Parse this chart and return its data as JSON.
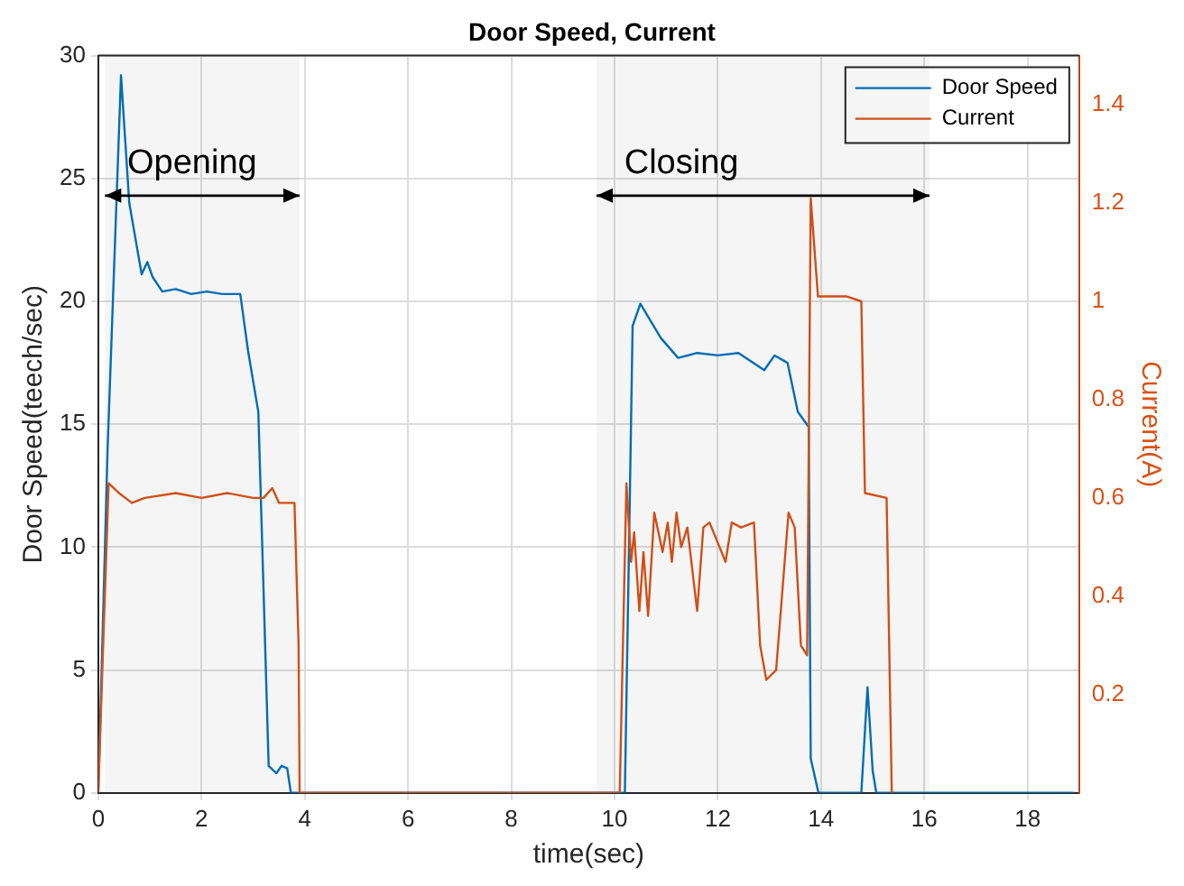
{
  "chart_data": {
    "type": "line",
    "title": "Door Speed, Current",
    "xlabel": "time(sec)",
    "ylabel": "Door Speed(teech/sec)",
    "y2label": "Current(A)",
    "series": [
      {
        "name": "Door Speed",
        "color": "#0072bd",
        "x": [
          0,
          0.18,
          0.44,
          0.6,
          0.84,
          0.95,
          1.05,
          1.24,
          1.5,
          1.8,
          2.1,
          2.4,
          2.75,
          2.9,
          3.1,
          3.3,
          3.45,
          3.55,
          3.66,
          3.73,
          10.2,
          10.28,
          10.35,
          10.5,
          10.7,
          10.9,
          11.23,
          11.6,
          12.0,
          12.4,
          12.9,
          13.1,
          13.35,
          13.55,
          13.76,
          13.8,
          13.95,
          14.78,
          14.9,
          15.0,
          15.07,
          18.9
        ],
        "values": [
          0,
          14,
          29.2,
          24,
          21.1,
          21.6,
          21.0,
          20.4,
          20.5,
          20.3,
          20.4,
          20.3,
          20.3,
          18,
          15.5,
          1.1,
          0.8,
          1.1,
          1.0,
          0,
          0,
          10,
          19,
          19.9,
          19.2,
          18.5,
          17.7,
          17.9,
          17.8,
          17.9,
          17.2,
          17.8,
          17.5,
          15.5,
          14.9,
          1.4,
          0,
          0,
          4.3,
          0.9,
          0,
          0
        ]
      },
      {
        "name": "Current",
        "color": "#d95319",
        "axis": "y2",
        "x": [
          0,
          0.2,
          0.4,
          0.65,
          0.9,
          1.5,
          2.0,
          2.5,
          3.0,
          3.2,
          3.37,
          3.5,
          3.8,
          3.88,
          3.9,
          10.1,
          10.23,
          10.32,
          10.38,
          10.48,
          10.56,
          10.65,
          10.77,
          10.93,
          11.03,
          11.11,
          11.2,
          11.29,
          11.41,
          11.6,
          11.72,
          11.84,
          12.15,
          12.27,
          12.45,
          12.7,
          12.82,
          12.94,
          13.13,
          13.37,
          13.49,
          13.61,
          13.73,
          13.8,
          13.94,
          14.5,
          14.78,
          14.85,
          15.27,
          15.37
        ],
        "values": [
          0,
          0.63,
          0.61,
          0.59,
          0.6,
          0.61,
          0.6,
          0.61,
          0.6,
          0.6,
          0.62,
          0.59,
          0.59,
          0.3,
          0,
          0,
          0.63,
          0.47,
          0.53,
          0.37,
          0.49,
          0.36,
          0.57,
          0.49,
          0.55,
          0.47,
          0.57,
          0.5,
          0.54,
          0.37,
          0.54,
          0.55,
          0.47,
          0.55,
          0.54,
          0.55,
          0.3,
          0.23,
          0.25,
          0.57,
          0.54,
          0.3,
          0.28,
          1.21,
          1.01,
          1.01,
          1.0,
          0.61,
          0.6,
          0
        ]
      }
    ],
    "xlim": [
      0,
      19
    ],
    "xticks": [
      0,
      2,
      4,
      6,
      8,
      10,
      12,
      14,
      16,
      18
    ],
    "ylim": [
      0,
      30
    ],
    "yticks": [
      0,
      5,
      10,
      15,
      20,
      25,
      30
    ],
    "y2lim": [
      0,
      1.5
    ],
    "y2ticks": [
      0.2,
      0.4,
      0.6,
      0.8,
      1,
      1.2,
      1.4
    ],
    "bands": [
      {
        "axis": "x",
        "from": 0.13,
        "to": 3.9,
        "label": "Opening"
      },
      {
        "axis": "x",
        "from": 9.65,
        "to": 16.1,
        "label": "Closing"
      }
    ],
    "grid": true,
    "legend": "top right",
    "marker": "none",
    "line_style": "solid"
  }
}
